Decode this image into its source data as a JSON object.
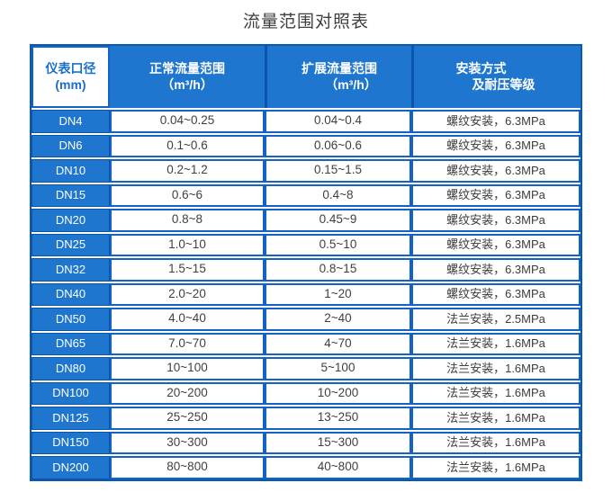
{
  "title": "流量范围对照表",
  "colors": {
    "header_blue": "#1e76cf",
    "grid_border_blue": "#1363c6",
    "dark_border_blue": "#0b58b2",
    "header_text_on_white": "#1a6fc9",
    "data_text": "#404040"
  },
  "table": {
    "headers": [
      {
        "line1": "仪表口径",
        "line2": "(mm)"
      },
      {
        "line1": "正常流量范围",
        "line2": "（m³/h）"
      },
      {
        "line1": "扩展流量范围",
        "line2": "（m³/h）"
      },
      {
        "line1": "安装方式",
        "line2": "及耐压等级"
      }
    ],
    "rows": [
      {
        "dn": "DN4",
        "normal": "0.04~0.25",
        "extended": "0.04~0.4",
        "install": "螺纹安装，6.3MPa"
      },
      {
        "dn": "DN6",
        "normal": "0.1~0.6",
        "extended": "0.06~0.6",
        "install": "螺纹安装，6.3MPa"
      },
      {
        "dn": "DN10",
        "normal": "0.2~1.2",
        "extended": "0.15~1.5",
        "install": "螺纹安装，6.3MPa"
      },
      {
        "dn": "DN15",
        "normal": "0.6~6",
        "extended": "0.4~8",
        "install": "螺纹安装，6.3MPa"
      },
      {
        "dn": "DN20",
        "normal": "0.8~8",
        "extended": "0.45~9",
        "install": "螺纹安装，6.3MPa"
      },
      {
        "dn": "DN25",
        "normal": "1.0~10",
        "extended": "0.5~10",
        "install": "螺纹安装，6.3MPa"
      },
      {
        "dn": "DN32",
        "normal": "1.5~15",
        "extended": "0.8~15",
        "install": "螺纹安装，6.3MPa"
      },
      {
        "dn": "DN40",
        "normal": "2.0~20",
        "extended": "1~20",
        "install": "螺纹安装，6.3MPa"
      },
      {
        "dn": "DN50",
        "normal": "4.0~40",
        "extended": "2~40",
        "install": "法兰安装，2.5MPa"
      },
      {
        "dn": "DN65",
        "normal": "7.0~70",
        "extended": "4~70",
        "install": "法兰安装，1.6MPa"
      },
      {
        "dn": "DN80",
        "normal": "10~100",
        "extended": "5~100",
        "install": "法兰安装，1.6MPa"
      },
      {
        "dn": "DN100",
        "normal": "20~200",
        "extended": "10~200",
        "install": "法兰安装，1.6MPa"
      },
      {
        "dn": "DN125",
        "normal": "25~250",
        "extended": "13~250",
        "install": "法兰安装，1.6MPa"
      },
      {
        "dn": "DN150",
        "normal": "30~300",
        "extended": "15~300",
        "install": "法兰安装，1.6MPa"
      },
      {
        "dn": "DN200",
        "normal": "80~800",
        "extended": "40~800",
        "install": "法兰安装，1.6MPa"
      }
    ]
  }
}
